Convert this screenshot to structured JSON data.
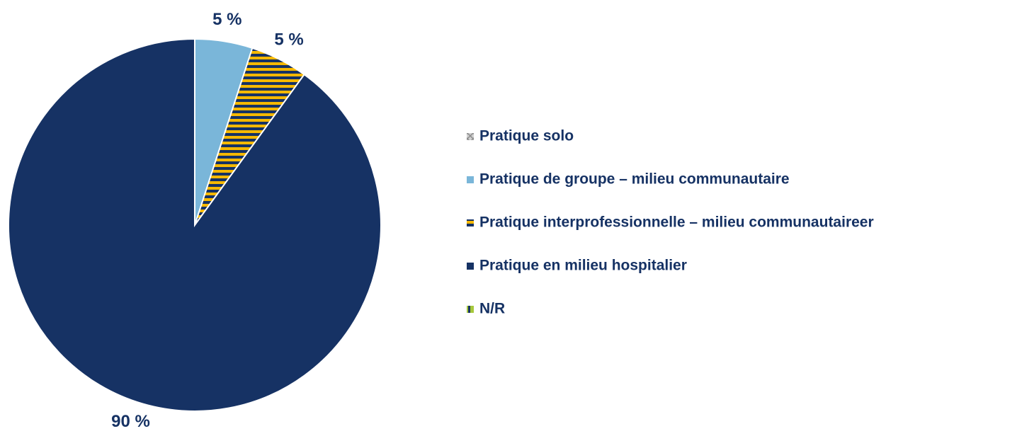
{
  "chart_data": {
    "type": "pie",
    "categories": [
      "Pratique solo",
      "Pratique de groupe – milieu communautaire",
      "Pratique interprofessionnelle – milieu communautaireer",
      "Pratique en milieu hospitalier",
      "N/R"
    ],
    "values": [
      0,
      5,
      5,
      90,
      0
    ],
    "value_labels": [
      null,
      "5 %",
      "5 %",
      "90 %",
      null
    ],
    "colors": [
      "#8c8c8c",
      "#7ab6d9",
      "#f5b800",
      "#163264",
      "#a6c83c"
    ],
    "patterns": [
      "crosshatch",
      "solid",
      "horizontal-stripes",
      "solid",
      "vertical-stripes"
    ],
    "legend": "right"
  }
}
